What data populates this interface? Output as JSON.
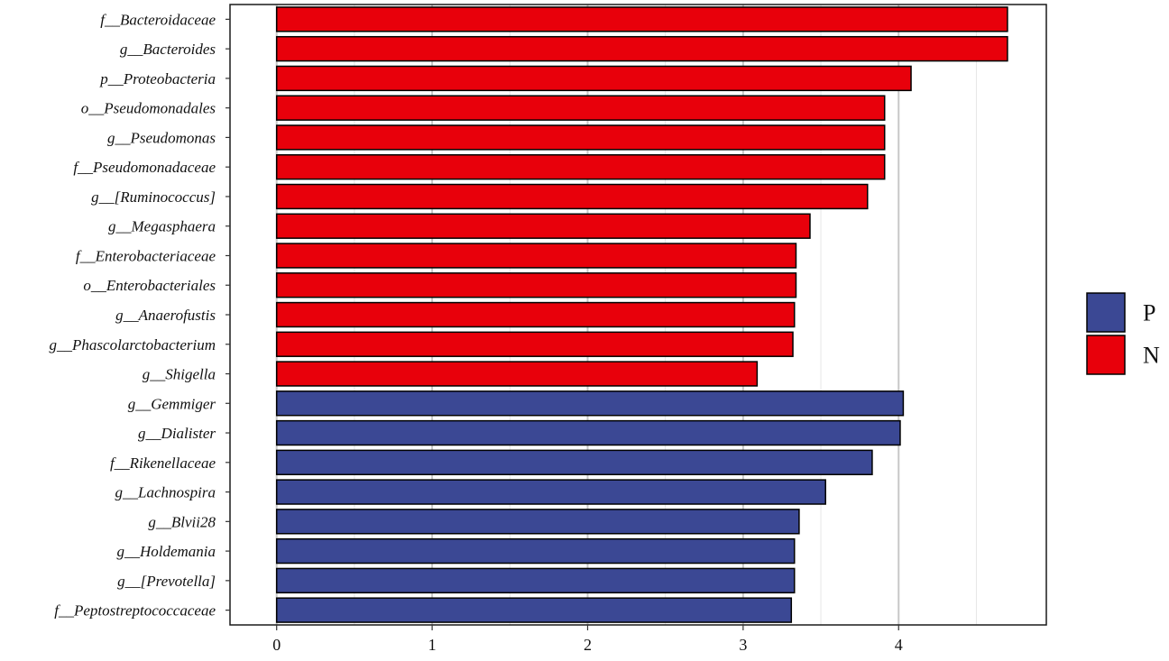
{
  "chart_data": {
    "type": "bar",
    "orientation": "horizontal",
    "categories": [
      "f__Bacteroidaceae",
      "g__Bacteroides",
      "p__Proteobacteria",
      "o__Pseudomonadales",
      "g__Pseudomonas",
      "f__Pseudomonadaceae",
      "g__[Ruminococcus]",
      "g__Megasphaera",
      "f__Enterobacteriaceae",
      "o__Enterobacteriales",
      "g__Anaerofustis",
      "g__Phascolarctobacterium",
      "g__Shigella",
      "g__Gemmiger",
      "g__Dialister",
      "f__Rikenellaceae",
      "g__Lachnospira",
      "g__Blvii28",
      "g__Holdemania",
      "g__[Prevotella]",
      "f__Peptostreptococcaceae"
    ],
    "values": [
      4.7,
      4.7,
      4.08,
      3.91,
      3.91,
      3.91,
      3.8,
      3.43,
      3.34,
      3.34,
      3.33,
      3.32,
      3.09,
      4.03,
      4.01,
      3.83,
      3.53,
      3.36,
      3.33,
      3.33,
      3.31
    ],
    "groups": [
      "N",
      "N",
      "N",
      "N",
      "N",
      "N",
      "N",
      "N",
      "N",
      "N",
      "N",
      "N",
      "N",
      "P",
      "P",
      "P",
      "P",
      "P",
      "P",
      "P",
      "P"
    ],
    "xlim": [
      -0.3,
      4.95
    ],
    "xticks": [
      "0",
      "1",
      "2",
      "3",
      "4"
    ],
    "grid": true,
    "title": "",
    "xlabel": "",
    "ylabel": "",
    "legend": {
      "position": "right",
      "entries": [
        {
          "name": "P",
          "color": "#3b4894"
        },
        {
          "name": "N",
          "color": "#e8000b"
        }
      ]
    }
  }
}
